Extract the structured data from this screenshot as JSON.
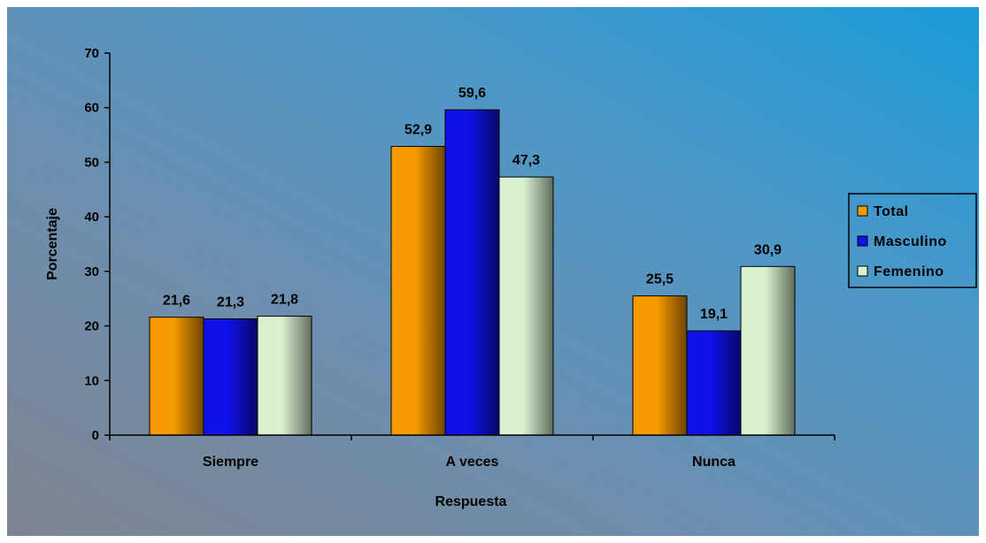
{
  "chart_data": {
    "type": "bar",
    "title": "",
    "xlabel": "Respuesta",
    "ylabel": "Porcentaje",
    "categories": [
      "Siempre",
      "A veces",
      "Nunca"
    ],
    "series": [
      {
        "name": "Total",
        "values": [
          21.6,
          52.9,
          25.5
        ],
        "labels": [
          "21,6",
          "52,9",
          "25,5"
        ],
        "color": "#f59a00"
      },
      {
        "name": "Masculino",
        "values": [
          21.3,
          59.6,
          19.1
        ],
        "labels": [
          "21,3",
          "59,6",
          "19,1"
        ],
        "color": "#1010e8"
      },
      {
        "name": "Femenino",
        "values": [
          21.8,
          47.3,
          30.9
        ],
        "labels": [
          "21,8",
          "47,3",
          "30,9"
        ],
        "color": "#d8f2d0"
      }
    ],
    "ylim": [
      0,
      70
    ],
    "yticks": [
      "0",
      "10",
      "20",
      "30",
      "40",
      "50",
      "60",
      "70"
    ],
    "grid": false,
    "legend_position": "right"
  }
}
